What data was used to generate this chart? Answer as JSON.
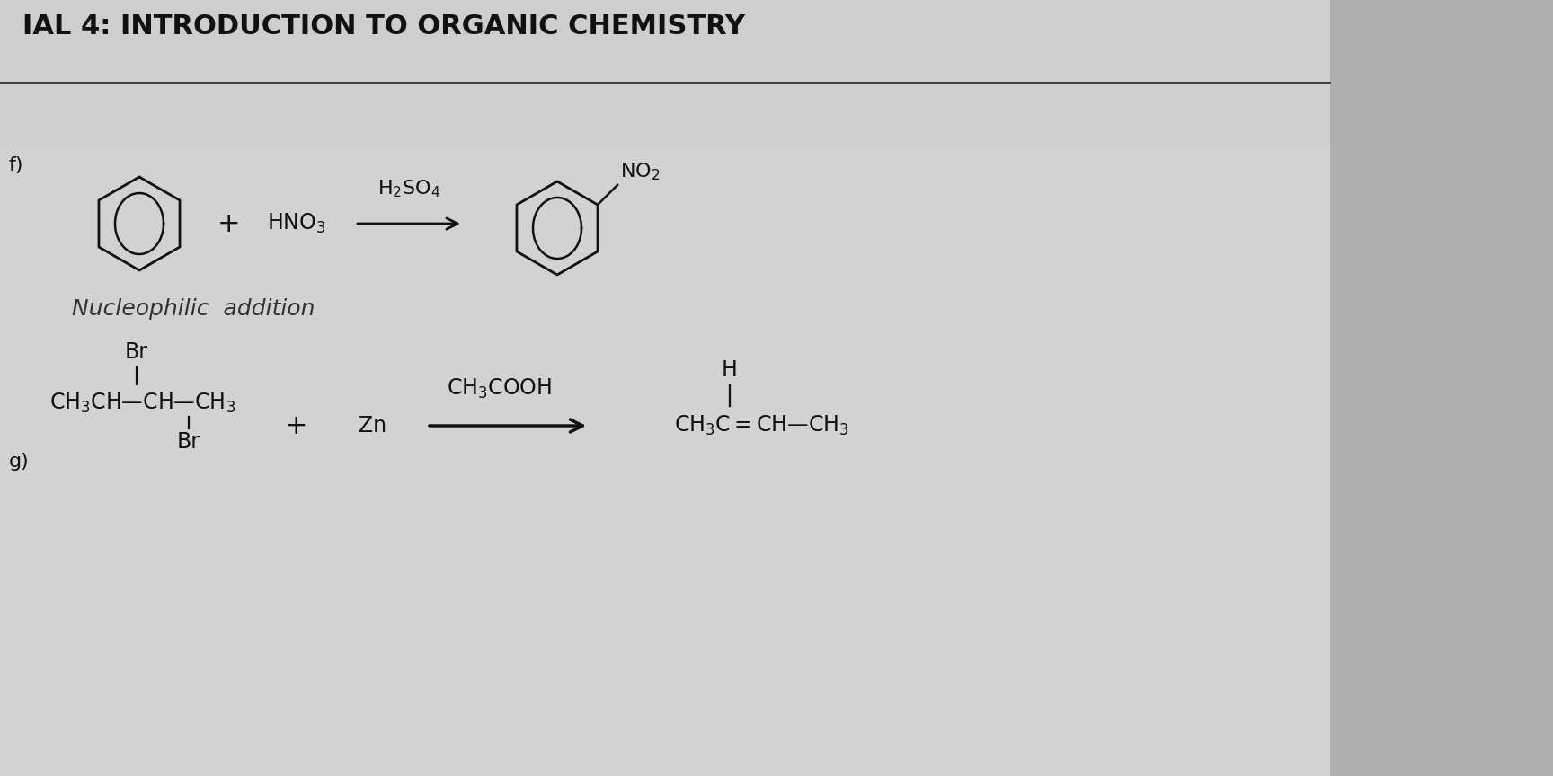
{
  "title": "IAL 4: INTRODUCTION TO ORGANIC CHEMISTRY",
  "title_fontsize": 22,
  "bg_left": "#c8c8c8",
  "bg_right": "#a0a0a0",
  "page_color": "#d8d8d8",
  "text_color": "#111111",
  "section_f_label": "f)",
  "section_g_label": "g)",
  "nucleophilic_text": "Nucleophilic  addition",
  "hno3": "HNO$_3$",
  "h2so4": "H$_2$SO$_4$",
  "no2": "NO$_2$",
  "zn": "Zn",
  "ch3cooh": "CH$_3$COOH",
  "plus": "+",
  "reactant_g_main": "CH$_3$CH—CH—CH$_3$",
  "product_g": "CH$_3$C$=$CH—CH$_3$",
  "br": "Br",
  "h": "H"
}
